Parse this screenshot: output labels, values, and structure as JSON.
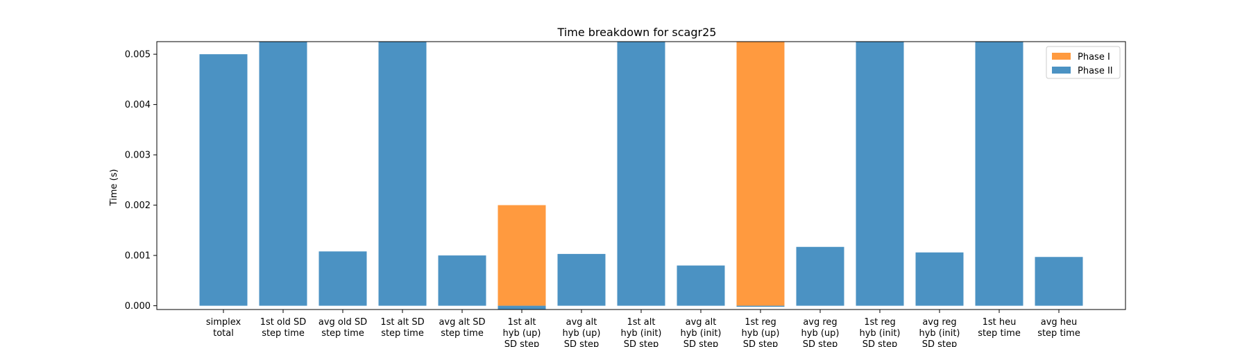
{
  "chart_data": {
    "type": "bar",
    "title": "Time breakdown for scagr25",
    "xlabel": "",
    "ylabel": "Time (s)",
    "ylim": [
      -7.5e-05,
      0.00525
    ],
    "yticks": [
      "0.000",
      "0.001",
      "0.002",
      "0.003",
      "0.004",
      "0.005"
    ],
    "ytick_values": [
      0.0,
      0.001,
      0.002,
      0.003,
      0.004,
      0.005
    ],
    "legend_position": "top-right",
    "categories": [
      [
        "simplex",
        "total"
      ],
      [
        "1st old SD",
        "step time"
      ],
      [
        "avg old SD",
        "step time"
      ],
      [
        "1st alt SD",
        "step time"
      ],
      [
        "avg alt SD",
        "step time"
      ],
      [
        "1st alt",
        "hyb (up)",
        "SD step"
      ],
      [
        "avg alt",
        "hyb (up)",
        "SD step"
      ],
      [
        "1st alt",
        "hyb (init)",
        "SD step"
      ],
      [
        "avg alt",
        "hyb (init)",
        "SD step"
      ],
      [
        "1st reg",
        "hyb (up)",
        "SD step"
      ],
      [
        "avg reg",
        "hyb (up)",
        "SD step"
      ],
      [
        "1st reg",
        "hyb (init)",
        "SD step"
      ],
      [
        "avg reg",
        "hyb (init)",
        "SD step"
      ],
      [
        "1st heu",
        "step time"
      ],
      [
        "avg heu",
        "step time"
      ]
    ],
    "series": [
      {
        "name": "Phase I",
        "color": "#ff9a3f",
        "values": [
          0,
          0,
          0,
          0,
          0,
          0.002,
          0,
          0,
          0,
          0.0053,
          0,
          0,
          0,
          0,
          0
        ]
      },
      {
        "name": "Phase II",
        "color": "#4b92c3",
        "values": [
          0.005,
          0.0053,
          0.00108,
          0.0053,
          0.001,
          -7e-05,
          0.00103,
          0.0053,
          0.0008,
          -2e-05,
          0.00117,
          0.0053,
          0.00106,
          0.0053,
          0.00097
        ]
      }
    ]
  }
}
